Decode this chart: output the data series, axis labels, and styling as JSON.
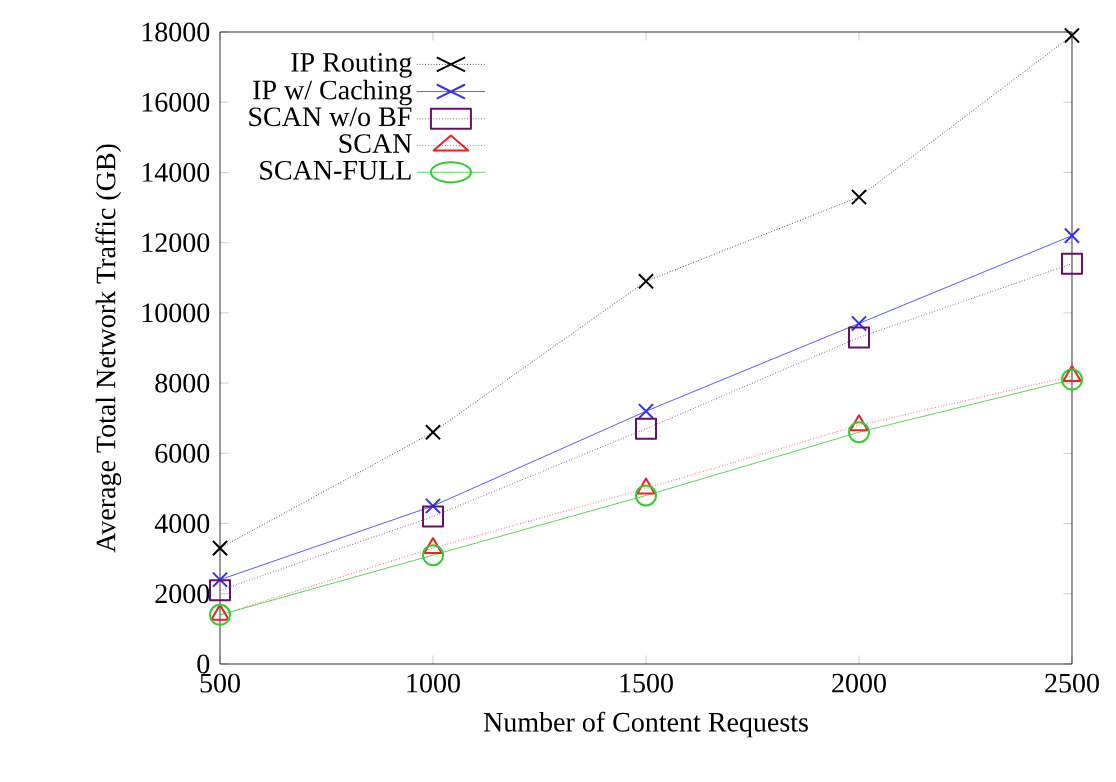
{
  "chart_data": {
    "type": "line",
    "xlabel": "Number of Content Requests",
    "ylabel": "Average Total Network Traffic (GB)",
    "x": [
      500,
      1000,
      1500,
      2000,
      2500
    ],
    "series": [
      {
        "name": "IP Routing",
        "color": "#000000",
        "marker": "cross",
        "line_style": "dotted",
        "values": [
          3300,
          6600,
          10900,
          13300,
          17900
        ]
      },
      {
        "name": "IP w/ Caching",
        "color": "#3333ee",
        "marker": "cross",
        "line_style": "solid",
        "values": [
          2400,
          4500,
          7200,
          9700,
          12200
        ]
      },
      {
        "name": "SCAN w/o BF",
        "color": "#661166",
        "marker": "square",
        "line_style": "dotted",
        "values": [
          2100,
          4200,
          6700,
          9300,
          11400
        ]
      },
      {
        "name": "SCAN",
        "color": "#ee2222",
        "marker": "triangle",
        "line_style": "dotted",
        "values": [
          1400,
          3300,
          5000,
          6800,
          8200
        ]
      },
      {
        "name": "SCAN-FULL",
        "color": "#33cc33",
        "marker": "circle",
        "line_style": "solid",
        "values": [
          1400,
          3100,
          4800,
          6600,
          8100
        ]
      }
    ],
    "xlim": [
      500,
      2500
    ],
    "ylim": [
      0,
      18000
    ],
    "xticks": [
      500,
      1000,
      1500,
      2000,
      2500
    ],
    "yticks": [
      0,
      2000,
      4000,
      6000,
      8000,
      10000,
      12000,
      14000,
      16000,
      18000
    ],
    "grid": false,
    "legend": "top left"
  }
}
